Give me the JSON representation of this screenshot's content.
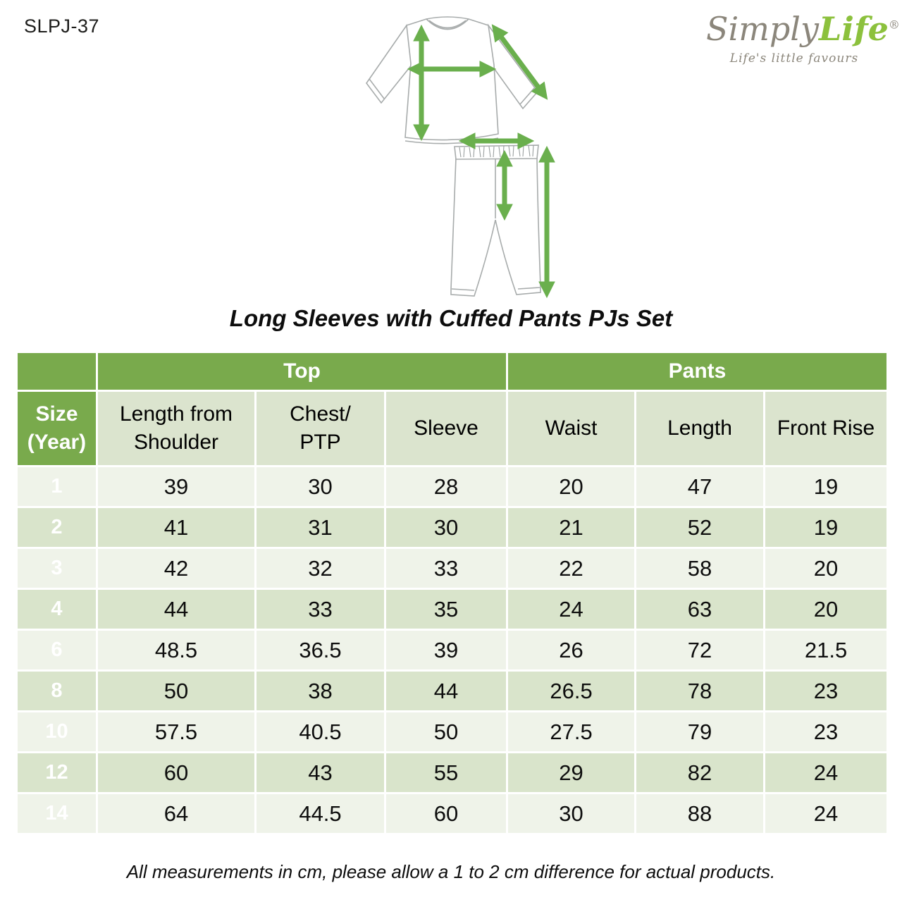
{
  "product_code": "SLPJ-37",
  "logo": {
    "brand_part1": "Simply",
    "brand_part2": "Life",
    "registered_mark": "®",
    "tagline": "Life's little favours",
    "gray_color": "#8b867b",
    "green_color": "#8cc13d"
  },
  "title": "Long Sleeves with Cuffed Pants PJs Set",
  "chart_data": {
    "type": "table",
    "title": "Long Sleeves with Cuffed Pants PJs Set",
    "units": "cm",
    "group_headers": [
      {
        "label": "",
        "span": 1
      },
      {
        "label": "Top",
        "span": 3
      },
      {
        "label": "Pants",
        "span": 3
      }
    ],
    "columns": [
      "Size\n(Year)",
      "Length from\nShoulder",
      "Chest/\nPTP",
      "Sleeve",
      "Waist",
      "Length",
      "Front Rise"
    ],
    "rows": [
      [
        "1",
        "39",
        "30",
        "28",
        "20",
        "47",
        "19"
      ],
      [
        "2",
        "41",
        "31",
        "30",
        "21",
        "52",
        "19"
      ],
      [
        "3",
        "42",
        "32",
        "33",
        "22",
        "58",
        "20"
      ],
      [
        "4",
        "44",
        "33",
        "35",
        "24",
        "63",
        "20"
      ],
      [
        "6",
        "48.5",
        "36.5",
        "39",
        "26",
        "72",
        "21.5"
      ],
      [
        "8",
        "50",
        "38",
        "44",
        "26.5",
        "78",
        "23"
      ],
      [
        "10",
        "57.5",
        "40.5",
        "50",
        "27.5",
        "79",
        "23"
      ],
      [
        "12",
        "60",
        "43",
        "55",
        "29",
        "82",
        "24"
      ],
      [
        "14",
        "64",
        "44.5",
        "60",
        "30",
        "88",
        "24"
      ]
    ]
  },
  "footnote": "All measurements in cm, please allow a 1 to 2 cm difference for actual products.",
  "illustration": {
    "name": "pajama-set-measurement-diagram",
    "arrow_color": "#6aaf4d",
    "line_color": "#a7abab"
  },
  "colors": {
    "header_green": "#79aa4c",
    "row_light": "#eff3e9",
    "row_dark": "#d9e4cb",
    "column_header_bg": "#dbe4ce"
  }
}
